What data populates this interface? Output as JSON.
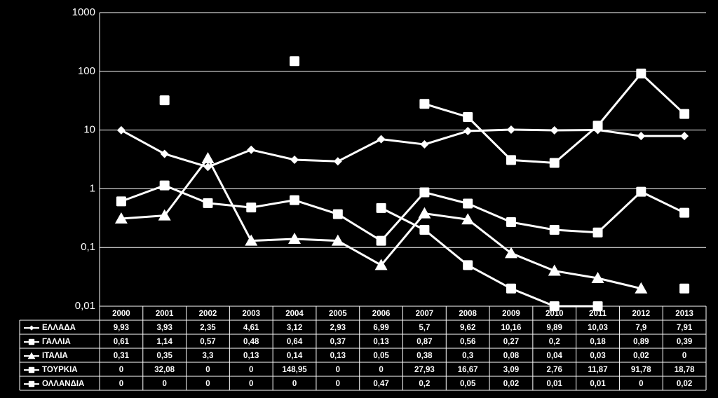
{
  "chart_data": {
    "type": "line",
    "log_scale": true,
    "grid": true,
    "categories": [
      "2000",
      "2001",
      "2002",
      "2003",
      "2004",
      "2005",
      "2006",
      "2007",
      "2008",
      "2009",
      "2010",
      "2011",
      "2012",
      "2013"
    ],
    "ylim": [
      0.01,
      1000
    ],
    "yticks": [
      {
        "value": 0.01,
        "label": "0,01"
      },
      {
        "value": 0.1,
        "label": "0,1"
      },
      1,
      10,
      100,
      1000
    ],
    "series": [
      {
        "name": "ΕΛΛΑΔΑ",
        "color": "#ffffff",
        "marker": "diamond",
        "values": [
          9.93,
          3.93,
          2.35,
          4.61,
          3.12,
          2.93,
          6.99,
          5.7,
          9.62,
          10.16,
          9.89,
          10.03,
          7.9,
          7.91
        ],
        "value_labels": [
          "9,93",
          "3,93",
          "2,35",
          "4,61",
          "3,12",
          "2,93",
          "6,99",
          "5,7",
          "9,62",
          "10,16",
          "9,89",
          "10,03",
          "7,9",
          "7,91"
        ]
      },
      {
        "name": "ΓΑΛΛΙΑ",
        "color": "#ffffff",
        "marker": "square",
        "values": [
          0.61,
          1.14,
          0.57,
          0.48,
          0.64,
          0.37,
          0.13,
          0.87,
          0.56,
          0.27,
          0.2,
          0.18,
          0.89,
          0.39
        ],
        "value_labels": [
          "0,61",
          "1,14",
          "0,57",
          "0,48",
          "0,64",
          "0,37",
          "0,13",
          "0,87",
          "0,56",
          "0,27",
          "0,2",
          "0,18",
          "0,89",
          "0,39"
        ]
      },
      {
        "name": "ΙΤΑΛΙΑ",
        "color": "#ffffff",
        "marker": "triangle",
        "values": [
          0.31,
          0.35,
          3.3,
          0.13,
          0.14,
          0.13,
          0.05,
          0.38,
          0.3,
          0.08,
          0.04,
          0.03,
          0.02,
          0
        ],
        "value_labels": [
          "0,31",
          "0,35",
          "3,3",
          "0,13",
          "0,14",
          "0,13",
          "0,05",
          "0,38",
          "0,3",
          "0,08",
          "0,04",
          "0,03",
          "0,02",
          "0"
        ]
      },
      {
        "name": "ΤΟΥΡΚΙΑ",
        "color": "#ffffff",
        "marker": "square",
        "values": [
          0,
          32.08,
          0,
          0,
          148.95,
          0,
          0,
          27.93,
          16.67,
          3.09,
          2.76,
          11.87,
          91.78,
          18.78
        ],
        "value_labels": [
          "0",
          "32,08",
          "0",
          "0",
          "148,95",
          "0",
          "0",
          "27,93",
          "16,67",
          "3,09",
          "2,76",
          "11,87",
          "91,78",
          "18,78"
        ]
      },
      {
        "name": "ΟΛΛΑΝΔΙΑ",
        "color": "#ffffff",
        "marker": "square",
        "values": [
          0,
          0,
          0,
          0,
          0,
          0,
          0.47,
          0.2,
          0.05,
          0.02,
          0.01,
          0.01,
          0,
          0.02
        ],
        "value_labels": [
          "0",
          "0",
          "0",
          "0",
          "0",
          "0",
          "0,47",
          "0,2",
          "0,05",
          "0,02",
          "0,01",
          "0,01",
          "0",
          "0,02"
        ]
      }
    ]
  }
}
